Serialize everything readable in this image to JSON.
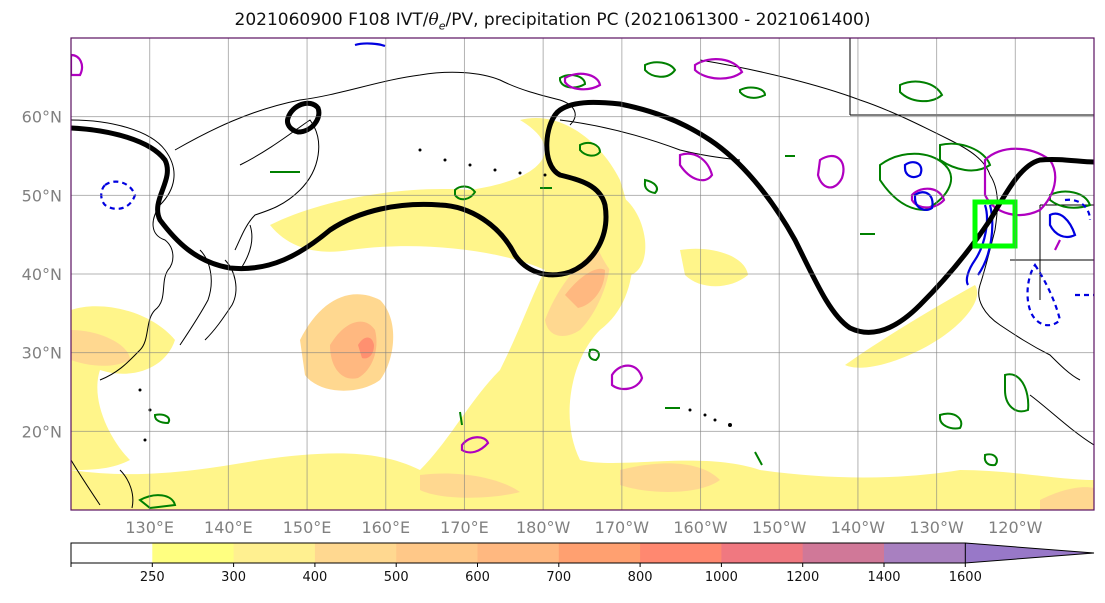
{
  "title": {
    "prefix": "2021060900 F108 IVT/",
    "theta": "θ",
    "theta_sub": "e",
    "suffix": "/PV, precipitation PC (2021061300 - 2021061400)"
  },
  "map": {
    "lat_labels": [
      "60°N",
      "50°N",
      "40°N",
      "30°N",
      "20°N"
    ],
    "lon_labels": [
      "130°E",
      "140°E",
      "150°E",
      "160°E",
      "170°E",
      "180°W",
      "170°W",
      "160°W",
      "150°W",
      "140°W",
      "130°W",
      "120°W"
    ],
    "lat_values": [
      60,
      50,
      40,
      30,
      20
    ],
    "lon_values": [
      130,
      140,
      150,
      160,
      170,
      180,
      -170,
      -160,
      -150,
      -140,
      -130,
      -120
    ],
    "extent": {
      "lon_min": 120,
      "lon_max": 250,
      "lat_min": 10,
      "lat_max": 70
    },
    "highlight_box": {
      "lat_range": [
        43,
        49
      ],
      "lon_range": [
        -125,
        -120
      ],
      "color": "#00ff00"
    },
    "colors": {
      "pv_contour": "#000000",
      "theta_e_high": "#b000c0",
      "theta_e_low": "#0000e0",
      "precip": "#008000"
    }
  },
  "colorbar": {
    "levels": [
      "250",
      "300",
      "400",
      "500",
      "600",
      "700",
      "800",
      "1000",
      "1200",
      "1400",
      "1600"
    ],
    "colors": [
      "#ffffff",
      "#ffff80",
      "#fff090",
      "#ffd890",
      "#ffc888",
      "#ffb880",
      "#ffa070",
      "#ff8870",
      "#f07880",
      "#d07898",
      "#a880c0",
      "#9878c8"
    ]
  }
}
